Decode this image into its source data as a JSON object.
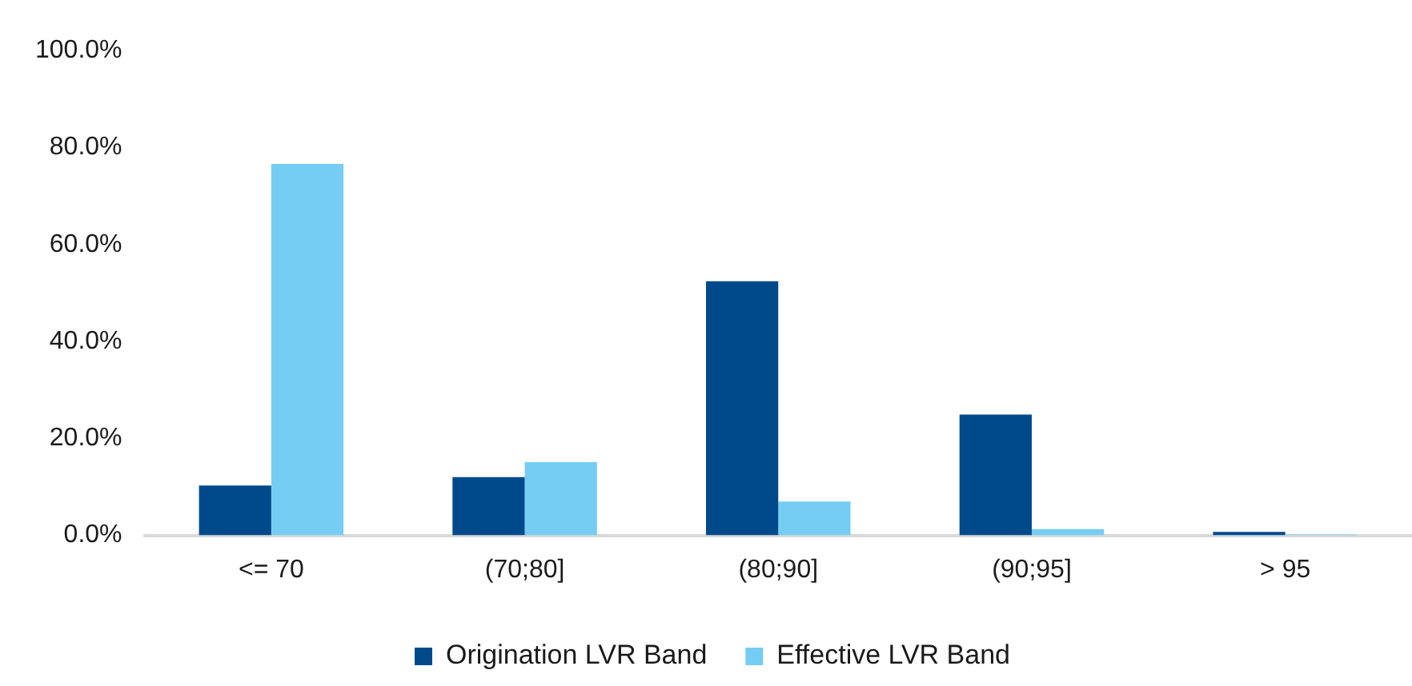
{
  "chart_data": {
    "type": "bar",
    "categories": [
      "<= 70",
      "(70;80]",
      "(80;90]",
      "(90;95]",
      "> 95"
    ],
    "series": [
      {
        "name": "Origination LVR Band",
        "color": "#004a8c",
        "values": [
          10.3,
          12.0,
          52.4,
          24.9,
          0.7
        ]
      },
      {
        "name": "Effective LVR Band",
        "color": "#75cdf3",
        "values": [
          76.6,
          15.1,
          7.0,
          1.3,
          0.2
        ]
      }
    ],
    "ylim": [
      0,
      100
    ],
    "yticks": [
      {
        "value": 0,
        "label": "0.0%"
      },
      {
        "value": 20,
        "label": "20.0%"
      },
      {
        "value": 40,
        "label": "40.0%"
      },
      {
        "value": 60,
        "label": "60.0%"
      },
      {
        "value": 80,
        "label": "80.0%"
      },
      {
        "value": 100,
        "label": "100.0%"
      }
    ],
    "grid": false,
    "legend": "bottom"
  }
}
